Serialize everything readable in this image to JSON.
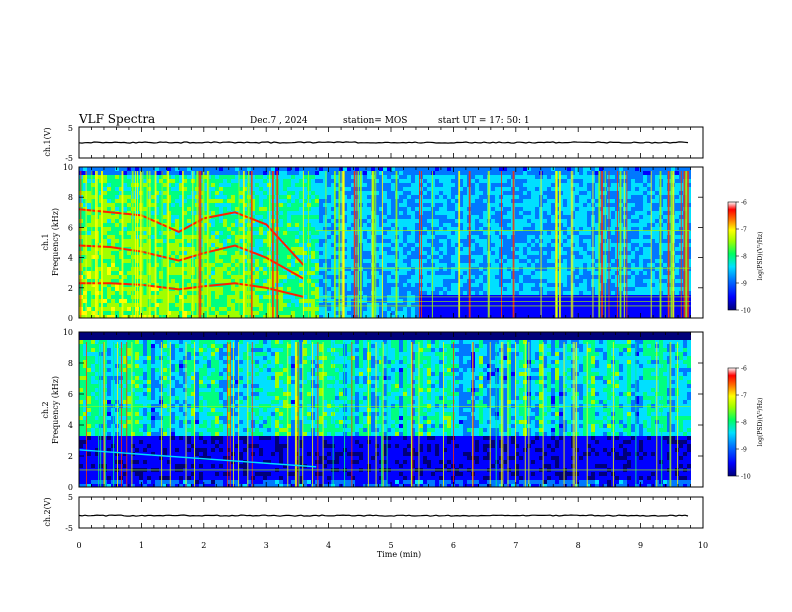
{
  "header": {
    "title": "VLF Spectra",
    "date": "Dec.7 , 2024",
    "station": "station= MOS",
    "start_ut": "start UT =  17: 50: 1"
  },
  "chart_data": [
    {
      "type": "line",
      "name": "ch1-waveform",
      "ylabel": "ch.1(V)",
      "ylim": [
        -5,
        5
      ],
      "yticks": [
        "5",
        "-5"
      ],
      "xlim": [
        0,
        10
      ],
      "x": [
        0,
        9.8
      ],
      "y": [
        0,
        0
      ]
    },
    {
      "type": "heatmap",
      "name": "ch1-spectrogram",
      "ylabel_line1": "ch.1",
      "ylabel_line2": "Frequency (kHz)",
      "ylim": [
        0,
        10
      ],
      "yticks": [
        "0",
        "2",
        "4",
        "6",
        "8",
        "10"
      ],
      "xlim": [
        0,
        10
      ],
      "data_end_min": 9.8,
      "colorbar": {
        "label": "log(PSD)(V²/Hz)",
        "range": [
          -10,
          -6
        ],
        "ticks": [
          "-6",
          "-7",
          "-8",
          "-9",
          "-10"
        ]
      },
      "tones_khz": [
        {
          "t": [
            0,
            0.5,
            1.0,
            1.6,
            2.0,
            2.5,
            3.0,
            3.6
          ],
          "f": [
            7.2,
            7.0,
            6.8,
            5.7,
            6.6,
            7.0,
            6.2,
            3.5
          ]
        },
        {
          "t": [
            0,
            0.5,
            1.0,
            1.6,
            2.0,
            2.5,
            3.0,
            3.6
          ],
          "f": [
            4.8,
            4.7,
            4.4,
            3.8,
            4.3,
            4.8,
            4.0,
            2.6
          ]
        },
        {
          "t": [
            0,
            0.5,
            1.0,
            1.6,
            2.0,
            2.5,
            3.0,
            3.6
          ],
          "f": [
            2.3,
            2.3,
            2.2,
            1.9,
            2.1,
            2.3,
            2.0,
            1.4
          ]
        }
      ]
    },
    {
      "type": "heatmap",
      "name": "ch2-spectrogram",
      "ylabel_line1": "ch.2",
      "ylabel_line2": "Frequency (kHz)",
      "ylim": [
        0,
        10
      ],
      "yticks": [
        "0",
        "2",
        "4",
        "6",
        "8",
        "10"
      ],
      "xlim": [
        0,
        10
      ],
      "data_end_min": 9.8,
      "colorbar": {
        "label": "log(PSD)(V²/Hz)",
        "range": [
          -10,
          -6
        ],
        "ticks": [
          "-6",
          "-7",
          "-8",
          "-9",
          "-10"
        ]
      }
    },
    {
      "type": "line",
      "name": "ch2-waveform",
      "ylabel": "ch.2(V)",
      "ylim": [
        -5,
        5
      ],
      "yticks": [
        "5",
        "-5"
      ],
      "xlim": [
        0,
        10
      ],
      "x": [
        0,
        9.8
      ],
      "y": [
        -1,
        -1
      ]
    }
  ],
  "x_axis": {
    "label": "Time (min)",
    "range": [
      0,
      10
    ],
    "ticks": [
      "0",
      "1",
      "2",
      "3",
      "4",
      "5",
      "6",
      "7",
      "8",
      "9",
      "10"
    ]
  },
  "colors": {
    "colormap": [
      "#00007a",
      "#0000ff",
      "#0078ff",
      "#00e0ff",
      "#00ff80",
      "#a0ff00",
      "#ffff00",
      "#ff8000",
      "#ff0000",
      "#ffffff"
    ],
    "background_noise": "#00003a"
  }
}
